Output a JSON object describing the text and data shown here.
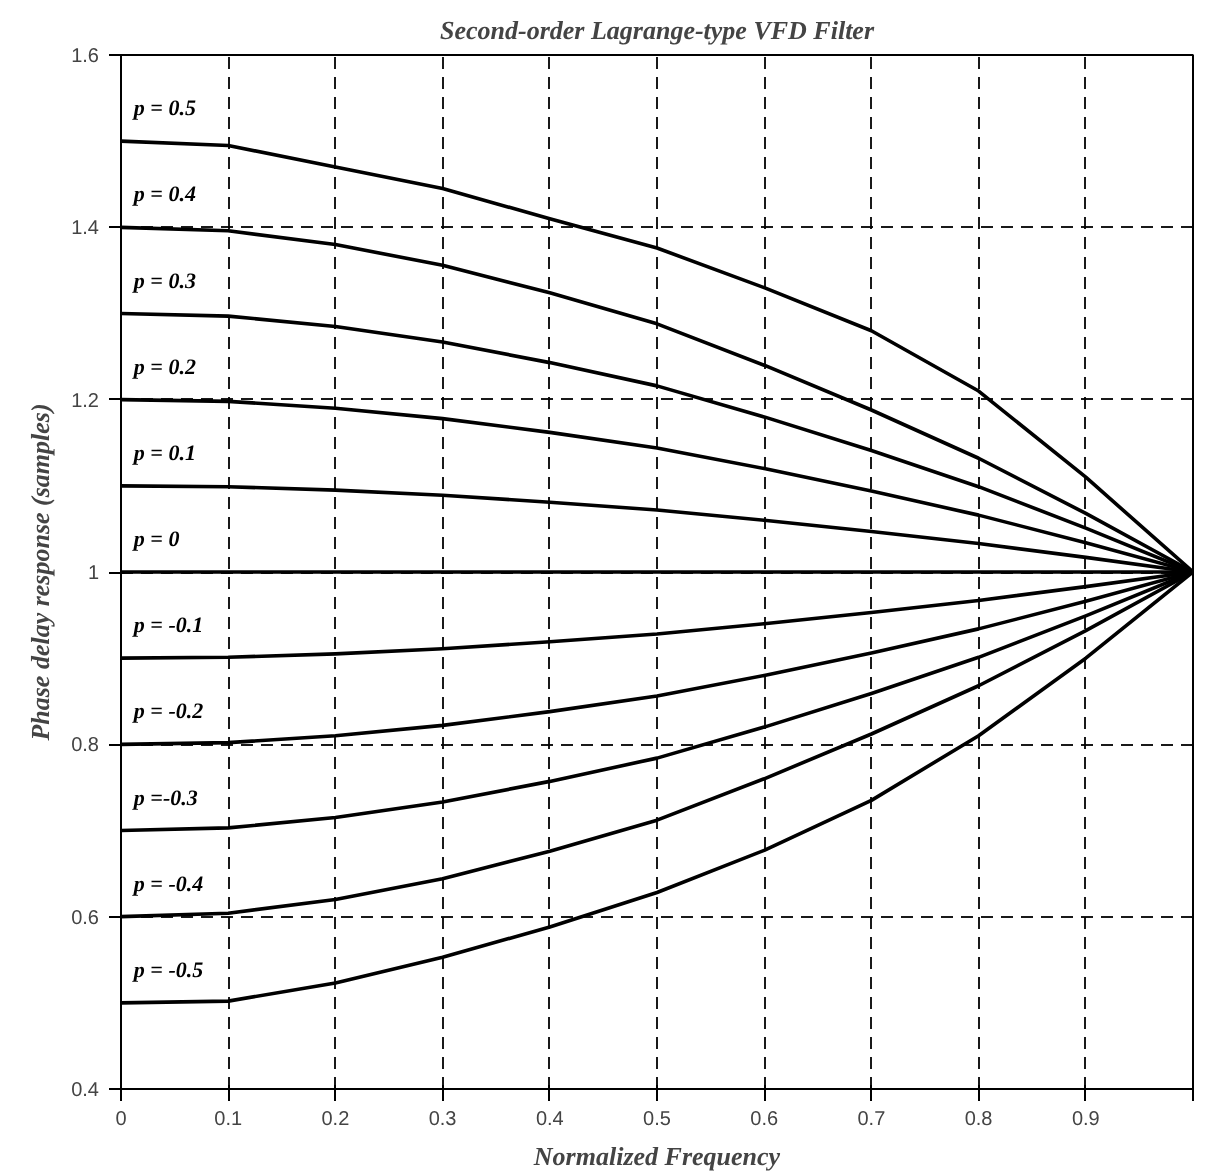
{
  "chart_data": {
    "type": "line",
    "title": "Second-order Lagrange-type VFD Filter",
    "xlabel": "Normalized Frequency",
    "ylabel": "Phase delay response (samples)",
    "x": [
      0,
      0.1,
      0.2,
      0.3,
      0.4,
      0.5,
      0.6,
      0.7,
      0.8,
      0.9,
      1.0
    ],
    "series": [
      {
        "name": "p = 0.5",
        "color": "#000000",
        "values": [
          1.5,
          1.495,
          1.47,
          1.445,
          1.41,
          1.376,
          1.33,
          1.28,
          1.21,
          1.11,
          1.0
        ]
      },
      {
        "name": "p = 0.4",
        "color": "#000000",
        "values": [
          1.4,
          1.396,
          1.38,
          1.356,
          1.324,
          1.288,
          1.24,
          1.188,
          1.132,
          1.068,
          1.0
        ]
      },
      {
        "name": "p = 0.3",
        "color": "#000000",
        "values": [
          1.3,
          1.297,
          1.285,
          1.267,
          1.243,
          1.216,
          1.18,
          1.141,
          1.099,
          1.051,
          1.0
        ]
      },
      {
        "name": "p = 0.2",
        "color": "#000000",
        "values": [
          1.2,
          1.198,
          1.19,
          1.178,
          1.162,
          1.144,
          1.12,
          1.094,
          1.066,
          1.034,
          1.0
        ]
      },
      {
        "name": "p = 0.1",
        "color": "#000000",
        "values": [
          1.1,
          1.099,
          1.095,
          1.089,
          1.081,
          1.072,
          1.06,
          1.047,
          1.033,
          1.017,
          1.0
        ]
      },
      {
        "name": "p = 0",
        "color": "#000000",
        "values": [
          1,
          1,
          1,
          1,
          1,
          1,
          1,
          1,
          1,
          1,
          1
        ]
      },
      {
        "name": "p = -0.1",
        "color": "#000000",
        "values": [
          0.9,
          0.901,
          0.905,
          0.911,
          0.919,
          0.928,
          0.94,
          0.953,
          0.967,
          0.983,
          1.0
        ]
      },
      {
        "name": "p = -0.2",
        "color": "#000000",
        "values": [
          0.8,
          0.802,
          0.81,
          0.822,
          0.838,
          0.856,
          0.88,
          0.906,
          0.934,
          0.966,
          1.0
        ]
      },
      {
        "name": "p =-0.3",
        "color": "#000000",
        "values": [
          0.7,
          0.703,
          0.715,
          0.733,
          0.757,
          0.784,
          0.82,
          0.859,
          0.901,
          0.949,
          1.0
        ]
      },
      {
        "name": "p = -0.4",
        "color": "#000000",
        "values": [
          0.6,
          0.604,
          0.62,
          0.644,
          0.676,
          0.712,
          0.76,
          0.812,
          0.868,
          0.932,
          1.0
        ]
      },
      {
        "name": "p = -0.5",
        "color": "#000000",
        "values": [
          0.5,
          0.502,
          0.523,
          0.553,
          0.588,
          0.628,
          0.677,
          0.735,
          0.81,
          0.9,
          1.0
        ]
      }
    ],
    "xlim": [
      0,
      1
    ],
    "xticks": [
      0,
      0.1,
      0.2,
      0.3,
      0.4,
      0.5,
      0.6,
      0.7,
      0.8,
      0.9,
      {
        "value": 1,
        "label": null
      }
    ],
    "ylim": [
      0.4,
      1.6
    ],
    "yticks": [
      0.4,
      0.6,
      0.8,
      1,
      1.2,
      1.4,
      1.6
    ],
    "grid": true,
    "line_style": "solid",
    "marker": "none"
  }
}
